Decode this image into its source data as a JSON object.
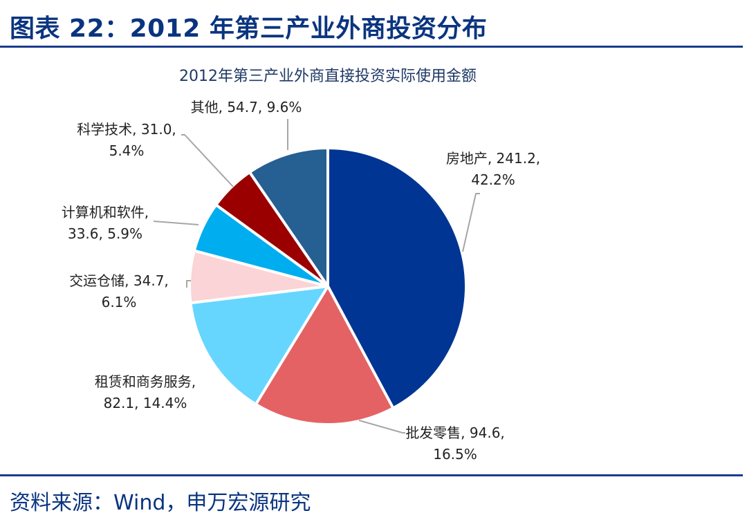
{
  "figure": {
    "title": "图表 22：2012 年第三产业外商投资分布",
    "source": "资料来源：Wind，申万宏源研究"
  },
  "colors": {
    "title": "#0a3480",
    "rule": "#1a3c8c",
    "chart_title": "#1f3864",
    "label": "#222222",
    "leader": "#a6a6a6"
  },
  "chart_data": {
    "type": "pie",
    "title": "2012年第三产业外商直接投资实际使用金额",
    "slices": [
      {
        "name": "房地产",
        "value": 241.2,
        "percent": "42.2%",
        "color": "#003594",
        "label_lines": [
          "房地产, 241.2,",
          "42.2%"
        ]
      },
      {
        "name": "批发零售",
        "value": 94.6,
        "percent": "16.5%",
        "color": "#e46264",
        "label_lines": [
          "批发零售, 94.6,",
          "16.5%"
        ]
      },
      {
        "name": "租赁和商务服务",
        "value": 82.1,
        "percent": "14.4%",
        "color": "#66d6ff",
        "label_lines": [
          "租赁和商务服务,",
          "82.1, 14.4%"
        ]
      },
      {
        "name": "交运仓储",
        "value": 34.7,
        "percent": "6.1%",
        "color": "#fad4d6",
        "label_lines": [
          "交运仓储, 34.7,",
          "6.1%"
        ]
      },
      {
        "name": "计算机和软件",
        "value": 33.6,
        "percent": "5.9%",
        "color": "#00aeef",
        "label_lines": [
          "计算机和软件,",
          "33.6, 5.9%"
        ]
      },
      {
        "name": "科学技术",
        "value": 31.0,
        "percent": "5.4%",
        "color": "#9a0000",
        "label_lines": [
          "科学技术, 31.0,",
          "5.4%"
        ]
      },
      {
        "name": "其他",
        "value": 54.7,
        "percent": "9.6%",
        "color": "#265f91",
        "label_lines": [
          "其他, 54.7, 9.6%"
        ]
      }
    ]
  }
}
